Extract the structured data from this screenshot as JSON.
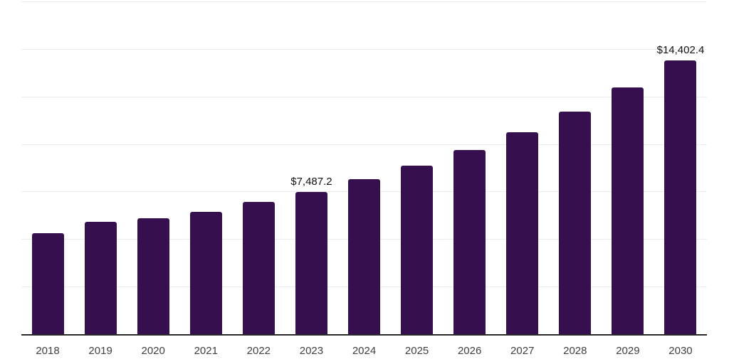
{
  "colors": {
    "bar": "#36104E",
    "axis_line": "#2a2a2a",
    "gridline": "#ededed",
    "tick_label": "#3f3f3f",
    "data_label": "#111111",
    "background": "#ffffff"
  },
  "chart_data": {
    "type": "bar",
    "title": "",
    "xlabel": "",
    "ylabel": "",
    "categories": [
      "2018",
      "2019",
      "2020",
      "2021",
      "2022",
      "2023",
      "2024",
      "2025",
      "2026",
      "2027",
      "2028",
      "2029",
      "2030"
    ],
    "values": [
      5310,
      5910,
      6100,
      6430,
      6950,
      7487.2,
      8150,
      8860,
      9680,
      10620,
      11700,
      12970,
      14402.4
    ],
    "data_labels": {
      "2023": "$7,487.2",
      "2030": "$14,402.4"
    },
    "ylim": [
      0,
      17500
    ],
    "gridline_step": 2500,
    "grid": "horizontal",
    "legend": "none",
    "y_axis_ticks_visible": false
  }
}
